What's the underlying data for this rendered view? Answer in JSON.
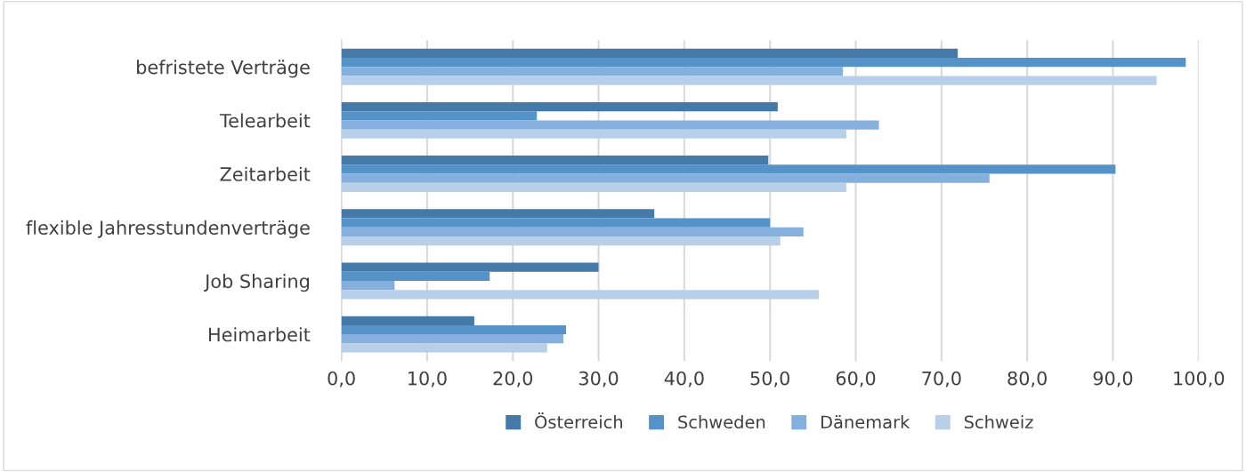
{
  "chart_data": {
    "type": "bar",
    "orientation": "horizontal",
    "categories": [
      "befristete Verträge",
      "Telearbeit",
      "Zeitarbeit",
      "flexible Jahresstundenverträge",
      "Job Sharing",
      "Heimarbeit"
    ],
    "series": [
      {
        "name": "Österreich",
        "color": "#457aa8",
        "values": [
          71.9,
          50.9,
          49.8,
          36.5,
          30.0,
          15.5
        ]
      },
      {
        "name": "Schweden",
        "color": "#5592c8",
        "values": [
          98.5,
          22.8,
          90.3,
          50.0,
          17.3,
          26.2
        ]
      },
      {
        "name": "Dänemark",
        "color": "#85b0dd",
        "values": [
          58.5,
          62.7,
          75.6,
          53.9,
          6.2,
          25.9
        ]
      },
      {
        "name": "Schweiz",
        "color": "#b8cfea",
        "values": [
          95.1,
          58.9,
          58.9,
          51.2,
          55.7,
          24.0
        ]
      }
    ],
    "xlim": [
      0,
      100
    ],
    "xticks": [
      {
        "value": 0,
        "label": "0,0"
      },
      {
        "value": 10,
        "label": "10,0"
      },
      {
        "value": 20,
        "label": "20,0"
      },
      {
        "value": 30,
        "label": "30,0"
      },
      {
        "value": 40,
        "label": "40,0"
      },
      {
        "value": 50,
        "label": "50,0"
      },
      {
        "value": 60,
        "label": "60,0"
      },
      {
        "value": 70,
        "label": "70,0"
      },
      {
        "value": 80,
        "label": "80,0"
      },
      {
        "value": 90,
        "label": "90,0"
      },
      {
        "value": 100,
        "label": "100,0"
      }
    ],
    "grid": "x",
    "legend": "bottom"
  }
}
